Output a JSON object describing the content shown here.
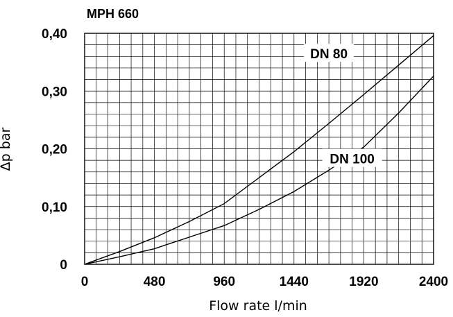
{
  "chart_data": {
    "type": "line",
    "title": "MPH 660",
    "xlabel": "Flow rate l/min",
    "ylabel": "Δp bar",
    "xlim": [
      0,
      2400
    ],
    "ylim": [
      0,
      0.4
    ],
    "x_ticks": [
      "0",
      "480",
      "960",
      "1440",
      "1920",
      "2400"
    ],
    "y_ticks": [
      "0",
      "0,10",
      "0,20",
      "0,30",
      "0,40"
    ],
    "grid": true,
    "series": [
      {
        "name": "DN 80",
        "x": [
          0,
          240,
          480,
          720,
          960,
          1200,
          1440,
          1680,
          1920,
          2160,
          2400
        ],
        "y": [
          0,
          0.022,
          0.046,
          0.074,
          0.105,
          0.15,
          0.195,
          0.244,
          0.294,
          0.345,
          0.396
        ]
      },
      {
        "name": "DN 100",
        "x": [
          0,
          240,
          480,
          720,
          960,
          1200,
          1440,
          1680,
          1920,
          2160,
          2400
        ],
        "y": [
          0,
          0.013,
          0.027,
          0.047,
          0.067,
          0.095,
          0.126,
          0.163,
          0.203,
          0.262,
          0.326
        ]
      }
    ]
  }
}
